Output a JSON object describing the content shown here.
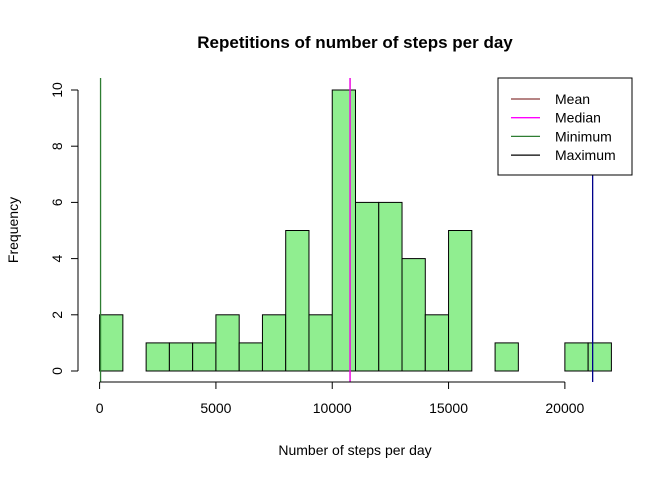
{
  "chart_data": {
    "type": "histogram",
    "title": "Repetitions of number of steps per day",
    "xlabel": "Number of steps per day",
    "ylabel": "Frequency",
    "bin_width": 1000,
    "bins": [
      {
        "start": 0,
        "end": 1000,
        "count": 2
      },
      {
        "start": 1000,
        "end": 2000,
        "count": 0
      },
      {
        "start": 2000,
        "end": 3000,
        "count": 1
      },
      {
        "start": 3000,
        "end": 4000,
        "count": 1
      },
      {
        "start": 4000,
        "end": 5000,
        "count": 1
      },
      {
        "start": 5000,
        "end": 6000,
        "count": 2
      },
      {
        "start": 6000,
        "end": 7000,
        "count": 1
      },
      {
        "start": 7000,
        "end": 8000,
        "count": 2
      },
      {
        "start": 8000,
        "end": 9000,
        "count": 5
      },
      {
        "start": 9000,
        "end": 10000,
        "count": 2
      },
      {
        "start": 10000,
        "end": 11000,
        "count": 10
      },
      {
        "start": 11000,
        "end": 12000,
        "count": 6
      },
      {
        "start": 12000,
        "end": 13000,
        "count": 6
      },
      {
        "start": 13000,
        "end": 14000,
        "count": 4
      },
      {
        "start": 14000,
        "end": 15000,
        "count": 2
      },
      {
        "start": 15000,
        "end": 16000,
        "count": 5
      },
      {
        "start": 16000,
        "end": 17000,
        "count": 0
      },
      {
        "start": 17000,
        "end": 18000,
        "count": 1
      },
      {
        "start": 18000,
        "end": 19000,
        "count": 0
      },
      {
        "start": 19000,
        "end": 20000,
        "count": 0
      },
      {
        "start": 20000,
        "end": 21000,
        "count": 1
      },
      {
        "start": 21000,
        "end": 22000,
        "count": 1
      }
    ],
    "xlim": [
      0,
      22000
    ],
    "ylim": [
      0,
      10
    ],
    "x_ticks": [
      0,
      5000,
      10000,
      15000,
      20000
    ],
    "y_ticks": [
      0,
      2,
      4,
      6,
      8,
      10
    ],
    "bar_color": "#90ee90",
    "bar_border_color": "#000000",
    "grid": false,
    "legend_position": "top-right",
    "reference_lines": [
      {
        "name": "Mean",
        "value": 10766,
        "color": "#8b3a3a"
      },
      {
        "name": "Median",
        "value": 10765,
        "color": "#ff00ff"
      },
      {
        "name": "Minimum",
        "value": 41,
        "color": "#2e7d32"
      },
      {
        "name": "Maximum",
        "value": 21194,
        "color": "#00008b"
      }
    ],
    "legend_entries": [
      {
        "label": "Mean",
        "color": "#8b3a3a"
      },
      {
        "label": "Median",
        "color": "#ff00ff"
      },
      {
        "label": "Minimum",
        "color": "#2e7d32"
      },
      {
        "label": "Maximum",
        "color": "#000000"
      }
    ]
  }
}
